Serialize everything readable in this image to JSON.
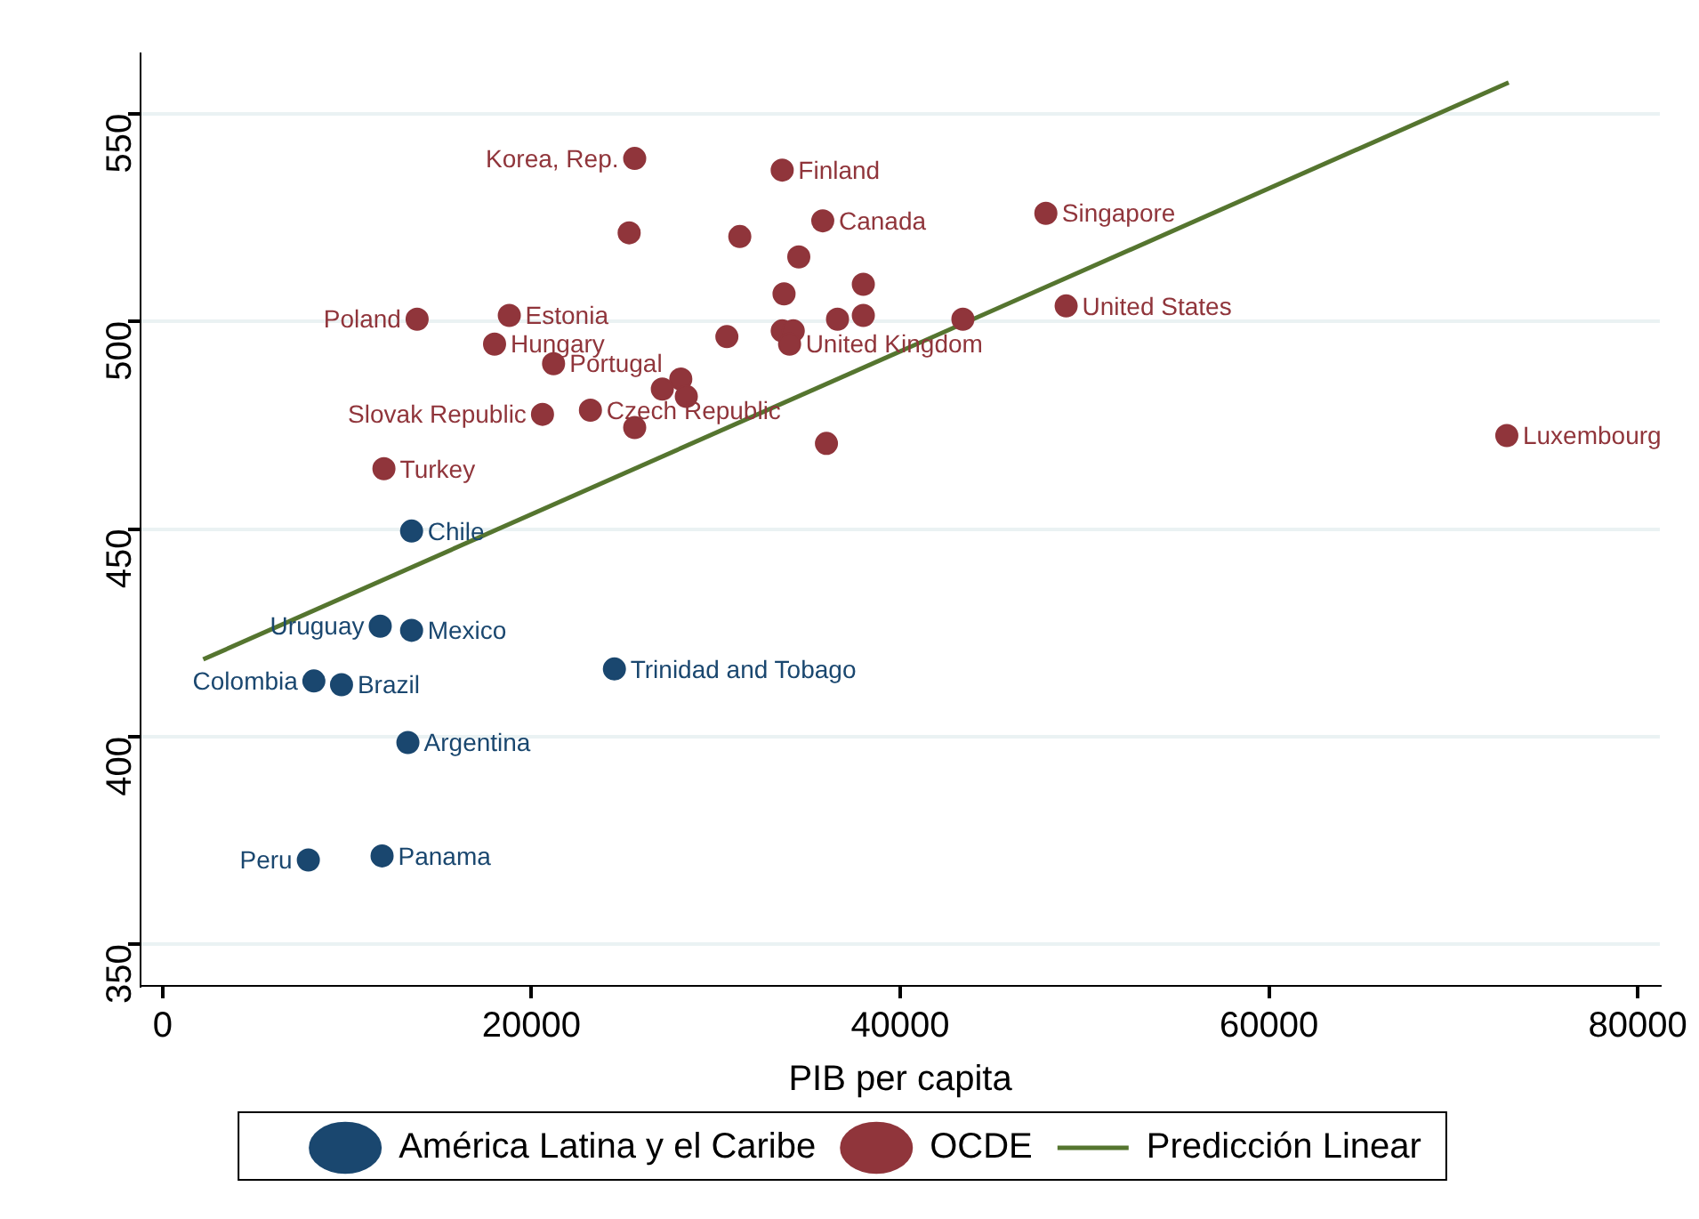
{
  "chart_data": {
    "type": "scatter",
    "xlabel": "PIB per capita",
    "xlim": [
      -1200,
      81200
    ],
    "ylim": [
      340,
      564.5
    ],
    "xticks": [
      0,
      20000,
      40000,
      60000,
      80000
    ],
    "yticks": [
      350,
      400,
      450,
      500,
      550
    ],
    "grid": "y",
    "legend": "bottom",
    "marker": "circle",
    "series": [
      {
        "name": "América Latina y el Caribe",
        "color": "#1a476f",
        "x": [
          13500,
          11800,
          13500,
          8200,
          9700,
          24500,
          13300,
          7900,
          11900
        ],
        "values": [
          449.5,
          426.6,
          425.6,
          413.4,
          412.5,
          416.3,
          398.6,
          370.3,
          371.3
        ]
      },
      {
        "name": "OCDE",
        "color": "#90353b",
        "x": [
          25600,
          33600,
          25300,
          31300,
          35800,
          47900,
          34500,
          33700,
          38000,
          13800,
          18800,
          36600,
          38000,
          49000,
          43400,
          30600,
          33600,
          34200,
          34000,
          18000,
          21200,
          28100,
          27100,
          28400,
          20600,
          23200,
          25600,
          36000,
          72900,
          12000
        ],
        "values": [
          539.2,
          536.4,
          521.3,
          520.4,
          524.2,
          526.0,
          515.5,
          506.6,
          508.9,
          500.5,
          501.4,
          500.5,
          501.4,
          503.7,
          500.5,
          496.3,
          497.7,
          497.7,
          494.5,
          494.5,
          489.8,
          486.1,
          483.7,
          481.9,
          477.6,
          478.6,
          474.4,
          470.6,
          472.5,
          464.5
        ]
      },
      {
        "name": "Predicción Linear",
        "type": "line",
        "color": "#55752f",
        "marker": "none",
        "x": [
          2200,
          73000
        ],
        "values": [
          418.6,
          557.5
        ]
      }
    ],
    "annotations": [
      {
        "text": "Chile",
        "x": 13500,
        "y": 449.5
      },
      {
        "text": "Uruguay",
        "x": 11800,
        "y": 426.6
      },
      {
        "text": "Mexico",
        "x": 13500,
        "y": 425.6
      },
      {
        "text": "Colombia",
        "x": 8200,
        "y": 413.4
      },
      {
        "text": "Brazil",
        "x": 9700,
        "y": 412.5
      },
      {
        "text": "Trinidad and Tobago",
        "x": 24500,
        "y": 416.3
      },
      {
        "text": "Argentina",
        "x": 13300,
        "y": 398.6
      },
      {
        "text": "Peru",
        "x": 7900,
        "y": 370.3
      },
      {
        "text": "Panama",
        "x": 11900,
        "y": 371.3
      },
      {
        "text": "Korea, Rep.",
        "x": 25600,
        "y": 539.2
      },
      {
        "text": "Finland",
        "x": 33600,
        "y": 536.4
      },
      {
        "text": "Canada",
        "x": 35800,
        "y": 524.2
      },
      {
        "text": "Singapore",
        "x": 47900,
        "y": 526.0
      },
      {
        "text": "Poland",
        "x": 13800,
        "y": 500.5
      },
      {
        "text": "Estonia",
        "x": 18800,
        "y": 501.4
      },
      {
        "text": "United States",
        "x": 49000,
        "y": 503.7
      },
      {
        "text": "United Kingdom",
        "x": 34000,
        "y": 494.5
      },
      {
        "text": "Hungary",
        "x": 18000,
        "y": 494.5
      },
      {
        "text": "Portugal",
        "x": 21200,
        "y": 489.8
      },
      {
        "text": "Slovak Republic",
        "x": 20600,
        "y": 477.6
      },
      {
        "text": "Czech Republic",
        "x": 23200,
        "y": 478.6
      },
      {
        "text": "Luxembourg",
        "x": 72900,
        "y": 472.5
      },
      {
        "text": "Turkey",
        "x": 12000,
        "y": 464.5
      }
    ]
  }
}
